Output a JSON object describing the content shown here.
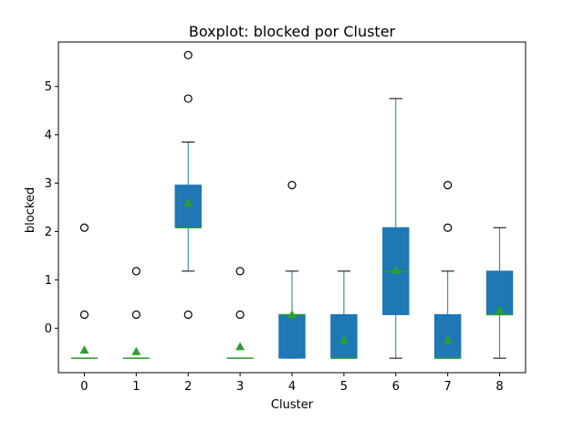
{
  "chart_data": {
    "type": "boxplot",
    "title": "Boxplot: blocked por Cluster",
    "xlabel": "Cluster",
    "ylabel": "blocked",
    "ylim": [
      -0.92,
      5.92
    ],
    "yticks": [
      0,
      1,
      2,
      3,
      4,
      5
    ],
    "categories": [
      "0",
      "1",
      "2",
      "3",
      "4",
      "5",
      "6",
      "7",
      "8"
    ],
    "boxes": [
      {
        "cluster": "0",
        "whislo": -0.62,
        "q1": -0.62,
        "med": -0.62,
        "q3": -0.62,
        "whishi": -0.62,
        "mean": -0.45,
        "fliers": [
          0.28,
          2.08
        ]
      },
      {
        "cluster": "1",
        "whislo": -0.62,
        "q1": -0.62,
        "med": -0.62,
        "q3": -0.62,
        "whishi": -0.62,
        "mean": -0.48,
        "fliers": [
          0.28,
          1.18
        ]
      },
      {
        "cluster": "2",
        "whislo": 1.18,
        "q1": 2.08,
        "med": 2.08,
        "q3": 2.96,
        "whishi": 3.85,
        "mean": 2.6,
        "fliers": [
          0.28,
          4.75,
          5.65
        ]
      },
      {
        "cluster": "3",
        "whislo": -0.62,
        "q1": -0.62,
        "med": -0.62,
        "q3": -0.62,
        "whishi": -0.62,
        "mean": -0.38,
        "fliers": [
          0.28,
          1.18
        ]
      },
      {
        "cluster": "4",
        "whislo": -0.62,
        "q1": -0.62,
        "med": 0.28,
        "q3": 0.28,
        "whishi": 1.18,
        "mean": 0.28,
        "fliers": [
          2.96
        ]
      },
      {
        "cluster": "5",
        "whislo": -0.62,
        "q1": -0.62,
        "med": -0.62,
        "q3": 0.28,
        "whishi": 1.18,
        "mean": -0.24,
        "fliers": []
      },
      {
        "cluster": "6",
        "whislo": -0.62,
        "q1": 0.28,
        "med": 1.18,
        "q3": 2.08,
        "whishi": 4.75,
        "mean": 1.2,
        "fliers": []
      },
      {
        "cluster": "7",
        "whislo": -0.62,
        "q1": -0.62,
        "med": -0.62,
        "q3": 0.28,
        "whishi": 1.18,
        "mean": -0.24,
        "fliers": [
          2.08,
          2.96
        ]
      },
      {
        "cluster": "8",
        "whislo": -0.62,
        "q1": 0.28,
        "med": 0.28,
        "q3": 1.18,
        "whishi": 2.08,
        "mean": 0.38,
        "fliers": []
      }
    ],
    "colors": {
      "box_fill": "#1f77b4",
      "median": "#2ca02c",
      "mean_marker": "#2ca02c",
      "whisker": "#1f77b4",
      "cap": "#000000",
      "flier": "#000000"
    },
    "grid": false,
    "legend": "none"
  }
}
